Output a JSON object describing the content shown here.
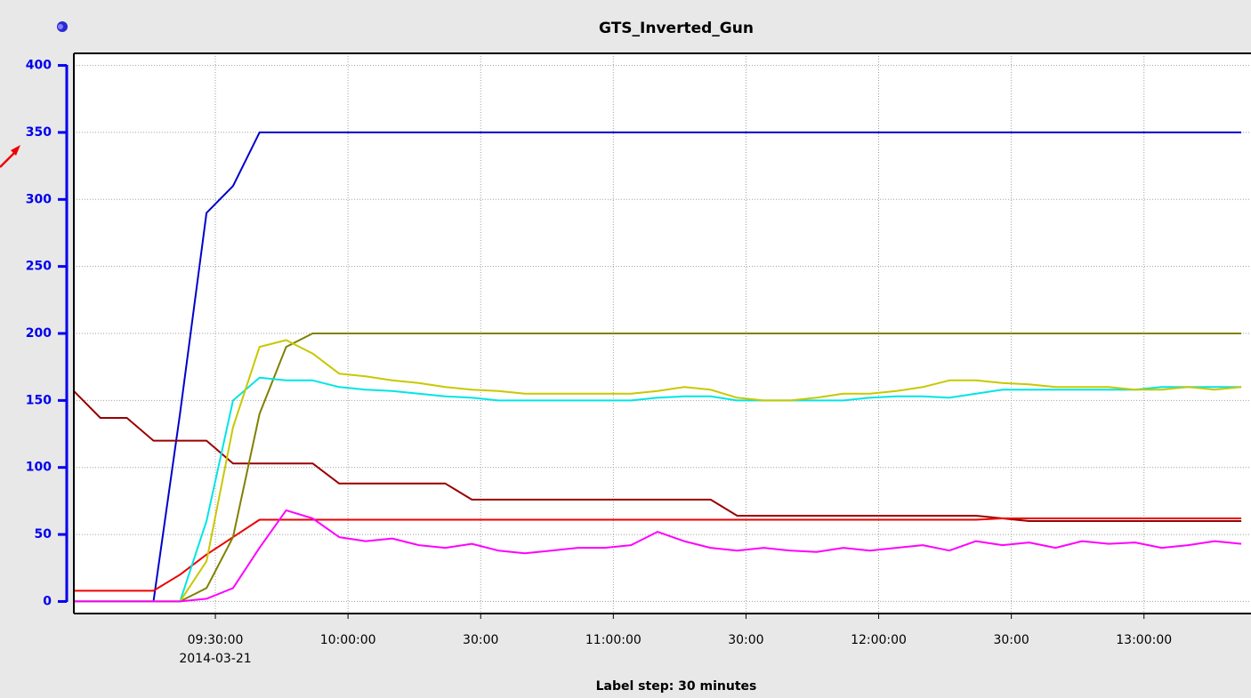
{
  "chart_data": {
    "type": "line",
    "title": "GTS_Inverted_Gun",
    "footer": "Label step: 30 minutes",
    "date": "2014-03-21",
    "x": [
      "08:58",
      "09:04",
      "09:10",
      "09:16",
      "09:22",
      "09:28",
      "09:34",
      "09:40",
      "09:46",
      "09:52",
      "09:58",
      "10:04",
      "10:10",
      "10:16",
      "10:22",
      "10:28",
      "10:34",
      "10:40",
      "10:46",
      "10:52",
      "10:58",
      "11:04",
      "11:10",
      "11:16",
      "11:22",
      "11:28",
      "11:34",
      "11:40",
      "11:46",
      "11:52",
      "11:58",
      "12:04",
      "12:10",
      "12:16",
      "12:22",
      "12:28",
      "12:34",
      "12:40",
      "12:46",
      "12:52",
      "12:58",
      "13:04",
      "13:10",
      "13:16",
      "13:22"
    ],
    "xlim": [
      "08:58",
      "13:24"
    ],
    "xticks": [
      {
        "value": "09:30",
        "label": "09:30:00"
      },
      {
        "value": "10:00",
        "label": "10:00:00"
      },
      {
        "value": "10:30",
        "label": "30:00"
      },
      {
        "value": "11:00",
        "label": "11:00:00"
      },
      {
        "value": "11:30",
        "label": "30:00"
      },
      {
        "value": "12:00",
        "label": "12:00:00"
      },
      {
        "value": "12:30",
        "label": "30:00"
      },
      {
        "value": "13:00",
        "label": "13:00:00"
      }
    ],
    "ylim": [
      -9,
      409
    ],
    "yticks": [
      0,
      50,
      100,
      150,
      200,
      250,
      300,
      350,
      400
    ],
    "grid": true,
    "series": [
      {
        "color": "#0000cc",
        "values": [
          0,
          0,
          0,
          0,
          140,
          290,
          310,
          350,
          350,
          350,
          350,
          350,
          350,
          350,
          350,
          350,
          350,
          350,
          350,
          350,
          350,
          350,
          350,
          350,
          350,
          350,
          350,
          350,
          350,
          350,
          350,
          350,
          350,
          350,
          350,
          350,
          350,
          350,
          350,
          350,
          350,
          350,
          350,
          350,
          350
        ]
      },
      {
        "color": "#990000",
        "values": [
          157,
          137,
          137,
          120,
          120,
          120,
          103,
          103,
          103,
          103,
          88,
          88,
          88,
          88,
          88,
          76,
          76,
          76,
          76,
          76,
          76,
          76,
          76,
          76,
          76,
          64,
          64,
          64,
          64,
          64,
          64,
          64,
          64,
          64,
          64,
          62,
          60,
          60,
          60,
          60,
          60,
          60,
          60,
          60,
          60
        ]
      },
      {
        "color": "#ee0000",
        "values": [
          8,
          8,
          8,
          8,
          20,
          35,
          48,
          61,
          61,
          61,
          61,
          61,
          61,
          61,
          61,
          61,
          61,
          61,
          61,
          61,
          61,
          61,
          61,
          61,
          61,
          61,
          61,
          61,
          61,
          61,
          61,
          61,
          61,
          61,
          61,
          62,
          62,
          62,
          62,
          62,
          62,
          62,
          62,
          62,
          62
        ]
      },
      {
        "color": "#808000",
        "values": [
          0,
          0,
          0,
          0,
          0,
          10,
          48,
          140,
          190,
          200,
          200,
          200,
          200,
          200,
          200,
          200,
          200,
          200,
          200,
          200,
          200,
          200,
          200,
          200,
          200,
          200,
          200,
          200,
          200,
          200,
          200,
          200,
          200,
          200,
          200,
          200,
          200,
          200,
          200,
          200,
          200,
          200,
          200,
          200,
          200
        ]
      },
      {
        "color": "#00e5e5",
        "values": [
          0,
          0,
          0,
          0,
          0,
          60,
          150,
          167,
          165,
          165,
          160,
          158,
          157,
          155,
          153,
          152,
          150,
          150,
          150,
          150,
          150,
          150,
          152,
          153,
          153,
          150,
          150,
          150,
          150,
          150,
          152,
          153,
          153,
          152,
          155,
          158,
          158,
          158,
          158,
          158,
          158,
          160,
          160,
          160,
          160
        ]
      },
      {
        "color": "#c8c800",
        "values": [
          0,
          0,
          0,
          0,
          0,
          30,
          130,
          190,
          195,
          185,
          170,
          168,
          165,
          163,
          160,
          158,
          157,
          155,
          155,
          155,
          155,
          155,
          157,
          160,
          158,
          152,
          150,
          150,
          152,
          155,
          155,
          157,
          160,
          165,
          165,
          163,
          162,
          160,
          160,
          160,
          158,
          158,
          160,
          158,
          160
        ]
      },
      {
        "color": "#ff00ff",
        "values": [
          0,
          0,
          0,
          0,
          0,
          2,
          10,
          40,
          68,
          62,
          48,
          45,
          47,
          42,
          40,
          43,
          38,
          36,
          38,
          40,
          40,
          42,
          52,
          45,
          40,
          38,
          40,
          38,
          37,
          40,
          38,
          40,
          42,
          38,
          45,
          42,
          44,
          40,
          45,
          43,
          44,
          40,
          42,
          45,
          43
        ]
      }
    ]
  }
}
